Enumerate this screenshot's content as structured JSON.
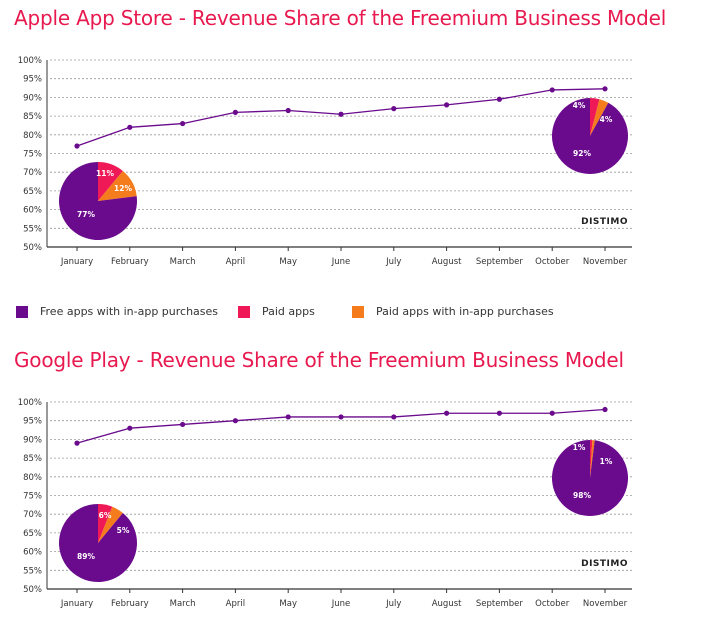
{
  "colors": {
    "title": "#e8194f",
    "free_inapp": "#6a0a8c",
    "paid": "#ee1956",
    "paid_inapp": "#f57c1c",
    "line": "#6a0a8c",
    "grid": "#9a9a9a",
    "axis": "#333333"
  },
  "legend": {
    "items": [
      {
        "label": "Free apps with in-app purchases",
        "color": "#6a0a8c"
      },
      {
        "label": "Paid apps",
        "color": "#ee1956"
      },
      {
        "label": "Paid apps with in-app purchases",
        "color": "#f57c1c"
      }
    ]
  },
  "chart_data": [
    {
      "type": "line",
      "title": "Apple App Store - Revenue Share of the Freemium Business Model",
      "categories": [
        "January",
        "February",
        "March",
        "April",
        "May",
        "June",
        "July",
        "August",
        "September",
        "October",
        "November"
      ],
      "series": [
        {
          "name": "Free apps with in-app purchases",
          "values": [
            77,
            82,
            83,
            86,
            86.5,
            85.5,
            87,
            88,
            89.5,
            92,
            92.3
          ]
        }
      ],
      "ylim": [
        50,
        100
      ],
      "yticks": [
        "50%",
        "55%",
        "60%",
        "65%",
        "70%",
        "75%",
        "80%",
        "85%",
        "90%",
        "95%",
        "100%"
      ],
      "grid": true,
      "watermark": "DISTIMO",
      "pies": [
        {
          "month": "January",
          "slices": [
            {
              "name": "Free apps with in-app purchases",
              "value": 77,
              "label": "77%"
            },
            {
              "name": "Paid apps",
              "value": 11,
              "label": "11%"
            },
            {
              "name": "Paid apps with in-app purchases",
              "value": 12,
              "label": "12%"
            }
          ]
        },
        {
          "month": "November",
          "slices": [
            {
              "name": "Free apps with in-app purchases",
              "value": 92,
              "label": "92%"
            },
            {
              "name": "Paid apps",
              "value": 4,
              "label": "4%"
            },
            {
              "name": "Paid apps with in-app purchases",
              "value": 4,
              "label": "4%"
            }
          ]
        }
      ]
    },
    {
      "type": "line",
      "title": "Google Play - Revenue Share of the Freemium Business Model",
      "categories": [
        "January",
        "February",
        "March",
        "April",
        "May",
        "June",
        "July",
        "August",
        "September",
        "October",
        "November"
      ],
      "series": [
        {
          "name": "Free apps with in-app purchases",
          "values": [
            89,
            93,
            94,
            95,
            96,
            96,
            96,
            97,
            97,
            97,
            98
          ]
        }
      ],
      "ylim": [
        50,
        100
      ],
      "yticks": [
        "50%",
        "55%",
        "60%",
        "65%",
        "70%",
        "75%",
        "80%",
        "85%",
        "90%",
        "95%",
        "100%"
      ],
      "grid": true,
      "watermark": "DISTIMO",
      "pies": [
        {
          "month": "January",
          "slices": [
            {
              "name": "Free apps with in-app purchases",
              "value": 89,
              "label": "89%"
            },
            {
              "name": "Paid apps",
              "value": 6,
              "label": "6%"
            },
            {
              "name": "Paid apps with in-app purchases",
              "value": 5,
              "label": "5%"
            }
          ]
        },
        {
          "month": "November",
          "slices": [
            {
              "name": "Free apps with in-app purchases",
              "value": 98,
              "label": "98%"
            },
            {
              "name": "Paid apps",
              "value": 1,
              "label": "1%"
            },
            {
              "name": "Paid apps with in-app purchases",
              "value": 1,
              "label": "1%"
            }
          ]
        }
      ]
    }
  ]
}
